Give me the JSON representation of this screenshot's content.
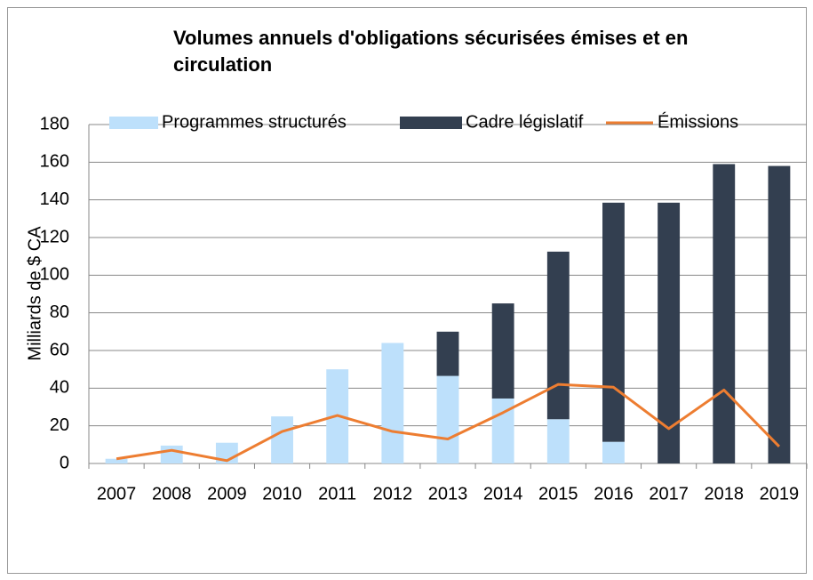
{
  "chart_data": {
    "type": "bar",
    "title": "Volumes annuels d'obligations sécurisées émises et en circulation",
    "y_label": "Milliards de $ CA",
    "categories": [
      "2007",
      "2008",
      "2009",
      "2010",
      "2011",
      "2012",
      "2013",
      "2014",
      "2015",
      "2016",
      "2017",
      "2018",
      "2019"
    ],
    "series": [
      {
        "name": "Programmes structurés",
        "color": "#bde0fb",
        "type": "bar",
        "values": [
          2.5,
          9.5,
          11,
          25,
          50,
          64,
          46.5,
          34.5,
          23.5,
          11.5,
          0,
          0,
          0
        ]
      },
      {
        "name": "Cadre législatif",
        "color": "#333f50",
        "type": "bar",
        "values": [
          0,
          0,
          0,
          0,
          0,
          0,
          23.5,
          50.5,
          89,
          127,
          138.5,
          159,
          158
        ]
      },
      {
        "name": "Émissions",
        "color": "#ed7d31",
        "type": "line",
        "values": [
          2.5,
          7,
          1.5,
          17,
          25.5,
          17,
          13,
          27,
          42,
          40.5,
          18.5,
          39,
          9
        ]
      }
    ],
    "stacked": true,
    "ylim": [
      0,
      180
    ],
    "yticks": [
      0,
      20,
      40,
      60,
      80,
      100,
      120,
      140,
      160,
      180
    ],
    "grid": true,
    "legend": "top"
  }
}
